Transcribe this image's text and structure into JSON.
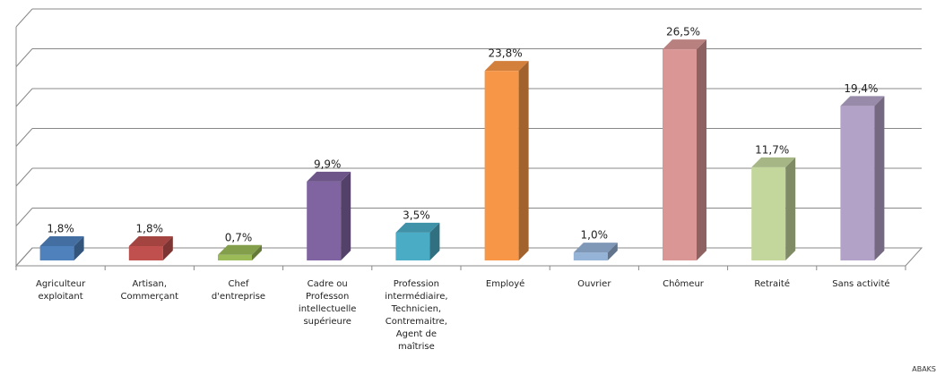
{
  "chart_data": {
    "type": "bar3d",
    "categories": [
      "Agriculteur exploitant",
      "Artisan, Commerçant",
      "Chef d'entreprise",
      "Cadre ou Professon intellectuelle supérieure",
      "Profession intermédiaire, Technicien, Contremaitre, Agent de maîtrise",
      "Employé",
      "Ouvrier",
      "Chômeur",
      "Retraité",
      "Sans activité"
    ],
    "values": [
      1.8,
      1.8,
      0.7,
      9.9,
      3.5,
      23.8,
      1.0,
      26.5,
      11.7,
      19.4
    ],
    "value_labels": [
      "1,8%",
      "1,8%",
      "0,7%",
      "9,9%",
      "3,5%",
      "23,8%",
      "1,0%",
      "26,5%",
      "11,7%",
      "19,4%"
    ],
    "colors": [
      "#4f81bd",
      "#c0504d",
      "#9bbb59",
      "#8064a2",
      "#4bacc6",
      "#f79646",
      "#95b3d7",
      "#d99694",
      "#c3d69b",
      "#b3a2c7"
    ],
    "ylim": [
      0,
      30
    ],
    "yticks": [
      0,
      5,
      10,
      15,
      20,
      25,
      30
    ],
    "grid": true
  },
  "watermark": "ABAKS"
}
